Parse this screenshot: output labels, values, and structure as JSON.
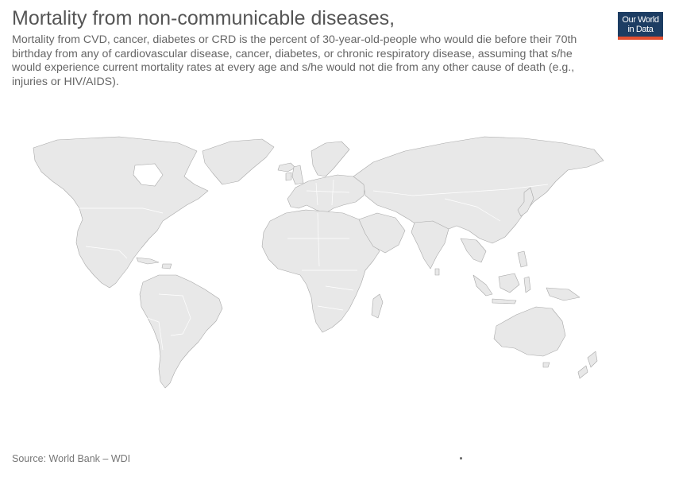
{
  "header": {
    "title": "Mortality from non-communicable diseases,",
    "subtitle": "Mortality from CVD, cancer, diabetes or CRD is the percent of 30-year-old-people who would die before their 70th birthday from any of cardiovascular disease, cancer, diabetes, or chronic respiratory disease, assuming that s/he would experience current mortality rates at every age and s/he would not die from any other cause of death (e.g., injuries or HIV/AIDS)."
  },
  "logo": {
    "line1": "Our World",
    "line2": "in Data",
    "background_color": "#1d3d63",
    "accent_color": "#e34f30"
  },
  "map": {
    "land_color": "#e8e8e8",
    "border_color": "#a8a8a8",
    "regions": [
      "north-america",
      "greenland",
      "south-america",
      "europe",
      "africa",
      "asia",
      "arabia",
      "india",
      "southeast-asia",
      "australia",
      "new-zealand",
      "madagascar",
      "japan",
      "uk",
      "iceland"
    ]
  },
  "footer": {
    "source": "Source: World Bank – WDI"
  }
}
